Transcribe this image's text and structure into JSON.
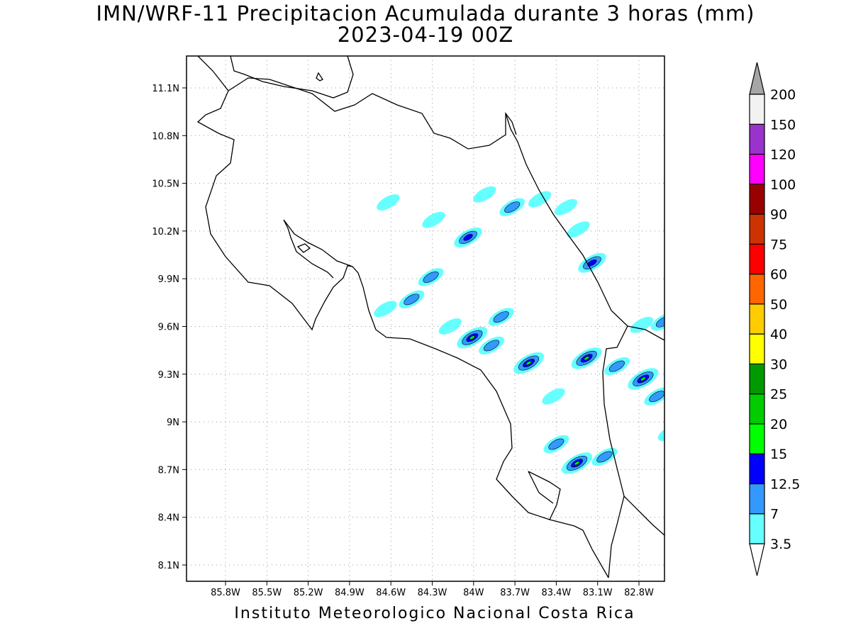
{
  "title_line1": "IMN/WRF-11 Precipitacion Acumulada durante 3 horas (mm)",
  "title_line2": "2023-04-19 00Z",
  "footer": "Instituto Meteorologico Nacional Costa Rica",
  "x_ticks": [
    {
      "value": -85.8,
      "label": "85.8W"
    },
    {
      "value": -85.5,
      "label": "85.5W"
    },
    {
      "value": -85.2,
      "label": "85.2W"
    },
    {
      "value": -84.9,
      "label": "84.9W"
    },
    {
      "value": -84.6,
      "label": "84.6W"
    },
    {
      "value": -84.3,
      "label": "84.3W"
    },
    {
      "value": -84.0,
      "label": "84W"
    },
    {
      "value": -83.7,
      "label": "83.7W"
    },
    {
      "value": -83.4,
      "label": "83.4W"
    },
    {
      "value": -83.1,
      "label": "83.1W"
    },
    {
      "value": -82.8,
      "label": "82.8W"
    }
  ],
  "y_ticks": [
    {
      "value": 11.1,
      "label": "11.1N"
    },
    {
      "value": 10.8,
      "label": "10.8N"
    },
    {
      "value": 10.5,
      "label": "10.5N"
    },
    {
      "value": 10.2,
      "label": "10.2N"
    },
    {
      "value": 9.9,
      "label": "9.9N"
    },
    {
      "value": 9.6,
      "label": "9.6N"
    },
    {
      "value": 9.3,
      "label": "9.3N"
    },
    {
      "value": 9.0,
      "label": "9N"
    },
    {
      "value": 8.7,
      "label": "8.7N"
    },
    {
      "value": 8.4,
      "label": "8.4N"
    },
    {
      "value": 8.1,
      "label": "8.1N"
    }
  ],
  "legend": {
    "labels": [
      "3.5",
      "7",
      "12.5",
      "15",
      "20",
      "25",
      "30",
      "40",
      "50",
      "60",
      "75",
      "90",
      "100",
      "120",
      "150",
      "200"
    ],
    "colors": [
      "#66ffff",
      "#3399ff",
      "#0000ff",
      "#00ff00",
      "#00cc00",
      "#009900",
      "#ffff00",
      "#ffcc00",
      "#ff6600",
      "#ff0000",
      "#cc3300",
      "#990000",
      "#ff00ff",
      "#9933cc",
      "#f2f2f2"
    ],
    "overflow_color": "#a6a6a6",
    "underflow_color": "#ffffff"
  },
  "precip_cells": [
    {
      "lon": -84.62,
      "lat": 10.38,
      "level": 0
    },
    {
      "lon": -84.29,
      "lat": 10.27,
      "level": 0
    },
    {
      "lon": -84.04,
      "lat": 10.16,
      "level": 2
    },
    {
      "lon": -83.92,
      "lat": 10.43,
      "level": 0
    },
    {
      "lon": -83.72,
      "lat": 10.35,
      "level": 1
    },
    {
      "lon": -83.52,
      "lat": 10.4,
      "level": 0
    },
    {
      "lon": -83.33,
      "lat": 10.35,
      "level": 0
    },
    {
      "lon": -83.24,
      "lat": 10.21,
      "level": 0
    },
    {
      "lon": -83.14,
      "lat": 10.0,
      "level": 2
    },
    {
      "lon": -84.31,
      "lat": 9.91,
      "level": 1
    },
    {
      "lon": -84.45,
      "lat": 9.77,
      "level": 1
    },
    {
      "lon": -84.64,
      "lat": 9.71,
      "level": 0
    },
    {
      "lon": -83.8,
      "lat": 9.66,
      "level": 1
    },
    {
      "lon": -84.17,
      "lat": 9.6,
      "level": 0
    },
    {
      "lon": -84.01,
      "lat": 9.53,
      "level": 3
    },
    {
      "lon": -83.87,
      "lat": 9.48,
      "level": 1
    },
    {
      "lon": -83.6,
      "lat": 9.37,
      "level": 3
    },
    {
      "lon": -83.18,
      "lat": 9.4,
      "level": 3
    },
    {
      "lon": -82.96,
      "lat": 9.35,
      "level": 1
    },
    {
      "lon": -82.77,
      "lat": 9.27,
      "level": 3
    },
    {
      "lon": -82.67,
      "lat": 9.16,
      "level": 1
    },
    {
      "lon": -83.4,
      "lat": 8.86,
      "level": 1
    },
    {
      "lon": -83.25,
      "lat": 8.74,
      "level": 3
    },
    {
      "lon": -83.05,
      "lat": 8.78,
      "level": 1
    },
    {
      "lon": -82.62,
      "lat": 9.63,
      "level": 1
    },
    {
      "lon": -82.78,
      "lat": 9.61,
      "level": 0
    },
    {
      "lon": -82.58,
      "lat": 8.93,
      "level": 0
    },
    {
      "lon": -83.42,
      "lat": 9.16,
      "level": 0
    }
  ]
}
